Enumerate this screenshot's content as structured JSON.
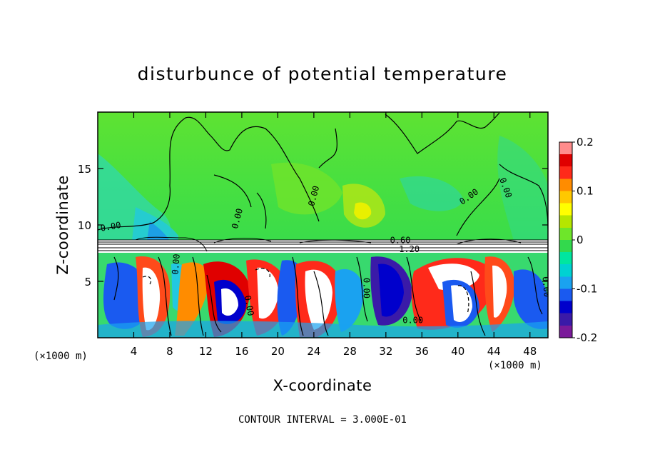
{
  "chart_data": {
    "type": "heatmap",
    "title": "disturbunce of potential temperature",
    "xlabel": "X-coordinate",
    "ylabel": "Z-coordinate",
    "x_unit_left": "(×1000 m)",
    "x_unit_right": "(×1000 m)",
    "xlim": [
      0,
      50
    ],
    "ylim": [
      0,
      20
    ],
    "x_ticks": [
      4,
      8,
      12,
      16,
      20,
      24,
      28,
      32,
      36,
      40,
      44,
      48
    ],
    "x_tick_labels": [
      "4",
      "8",
      "12",
      "16",
      "20",
      "24",
      "28",
      "32",
      "36",
      "40",
      "44",
      "48"
    ],
    "y_ticks": [
      5,
      10,
      15
    ],
    "y_tick_labels": [
      "5",
      "10",
      "15"
    ],
    "colorbar": {
      "range": [
        -0.2,
        0.2
      ],
      "ticks": [
        0.2,
        0.1,
        0,
        -0.1,
        -0.2
      ],
      "tick_labels": [
        "0.2",
        "0.1",
        "0",
        "-0.1",
        "-0.2"
      ],
      "colors": [
        "#7a1a9a",
        "#3a1aa8",
        "#0000cc",
        "#1a5af0",
        "#1aa2f0",
        "#00d2d2",
        "#00e6a0",
        "#33d94d",
        "#6ee62a",
        "#b5e600",
        "#ffff00",
        "#ffc800",
        "#ff8c00",
        "#ff2a1a",
        "#e00000",
        "#ff8c8c"
      ]
    },
    "contour_labels": [
      {
        "text": "0.00",
        "x": 1.5,
        "y": 9.6,
        "angle": -10
      },
      {
        "text": "0.00",
        "x": 15.8,
        "y": 10.5,
        "angle": -75
      },
      {
        "text": "0.00",
        "x": 24.3,
        "y": 12.5,
        "angle": -75
      },
      {
        "text": "0.00",
        "x": 41.4,
        "y": 12.3,
        "angle": -35
      },
      {
        "text": "0.00",
        "x": 45.0,
        "y": 13.2,
        "angle": 70
      },
      {
        "text": "0.60",
        "x": 33.6,
        "y": 8.4,
        "angle": 0
      },
      {
        "text": "1.20",
        "x": 34.6,
        "y": 7.6,
        "angle": 0
      },
      {
        "text": "0.00",
        "x": 9.0,
        "y": 6.5,
        "angle": -85
      },
      {
        "text": "0.00",
        "x": 29.5,
        "y": 4.4,
        "angle": 90
      },
      {
        "text": "0.00",
        "x": 35.0,
        "y": 1.3,
        "angle": 0
      },
      {
        "text": "0.00",
        "x": 49.5,
        "y": 4.5,
        "angle": 85
      },
      {
        "text": "0.00",
        "x": 16.5,
        "y": 2.8,
        "angle": 80
      }
    ],
    "contour_interval_text": "CONTOUR INTERVAL = 3.000E-01"
  }
}
